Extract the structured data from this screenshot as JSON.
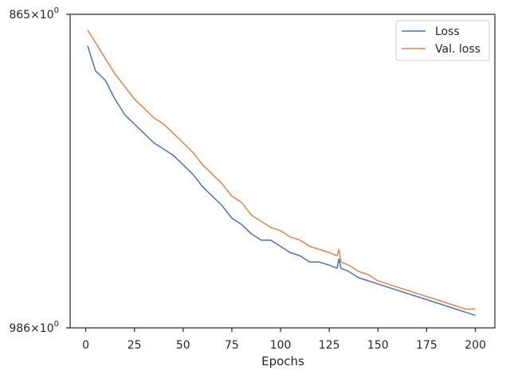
{
  "chart_data": {
    "type": "line",
    "title": "",
    "xlabel": "Epochs",
    "ylabel": "",
    "xlim": [
      -8,
      210
    ],
    "xticks": [
      0,
      25,
      50,
      75,
      100,
      125,
      150,
      175,
      200
    ],
    "xtick_labels": [
      "0",
      "25",
      "50",
      "75",
      "100",
      "125",
      "150",
      "175",
      "200"
    ],
    "ylim": [
      0,
      100
    ],
    "yticks": [
      {
        "value": 100,
        "base": "865",
        "exp": "0"
      },
      {
        "value": 0,
        "base": "986",
        "exp": "0"
      }
    ],
    "ytick_sep": "×",
    "grid": false,
    "legend_position": "top-right",
    "series": [
      {
        "name": "Loss",
        "color": "#4c72b0",
        "x": [
          1,
          5,
          10,
          15,
          20,
          25,
          30,
          35,
          40,
          45,
          50,
          55,
          60,
          65,
          70,
          75,
          80,
          85,
          90,
          95,
          100,
          105,
          110,
          115,
          120,
          125,
          129,
          130,
          131,
          135,
          140,
          145,
          150,
          155,
          160,
          165,
          170,
          175,
          180,
          185,
          190,
          195,
          200
        ],
        "y": [
          90,
          82,
          79,
          73,
          68,
          65,
          62,
          59,
          57,
          55,
          52,
          49,
          45,
          42,
          39,
          35,
          33,
          30,
          28,
          28,
          26,
          24,
          23,
          21,
          21,
          20,
          19,
          22,
          19,
          18,
          16,
          15,
          14,
          13,
          12,
          11,
          10,
          9,
          8,
          7,
          6,
          5,
          4
        ]
      },
      {
        "name": "Val. loss",
        "color": "#dd8452",
        "x": [
          1,
          5,
          10,
          15,
          20,
          25,
          30,
          35,
          40,
          45,
          50,
          55,
          60,
          65,
          70,
          75,
          80,
          85,
          90,
          95,
          100,
          105,
          110,
          115,
          120,
          125,
          129,
          130,
          131,
          135,
          140,
          145,
          150,
          155,
          160,
          165,
          170,
          175,
          180,
          185,
          190,
          195,
          200
        ],
        "y": [
          95,
          91,
          86,
          81,
          77,
          73,
          70,
          67,
          65,
          62,
          59,
          56,
          52,
          49,
          46,
          42,
          40,
          36,
          34,
          32,
          31,
          29,
          28,
          26,
          25,
          24,
          23,
          25,
          21,
          20,
          18,
          17,
          15,
          14,
          13,
          12,
          11,
          10,
          9,
          8,
          7,
          6,
          6
        ]
      }
    ]
  }
}
